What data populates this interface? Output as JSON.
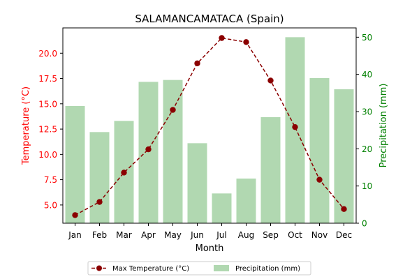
{
  "chart_data": {
    "type": "bar",
    "title": "SALAMANCAMATACA (Spain)",
    "xlabel": "Month",
    "categories": [
      "Jan",
      "Feb",
      "Mar",
      "Apr",
      "May",
      "Jun",
      "Jul",
      "Aug",
      "Sep",
      "Oct",
      "Nov",
      "Dec"
    ],
    "series": [
      {
        "name": "Max Temperature (°C)",
        "type": "line",
        "axis": "left",
        "color": "#8b0000",
        "values": [
          4.0,
          5.3,
          8.2,
          10.5,
          14.4,
          19.0,
          21.5,
          21.1,
          17.3,
          12.7,
          7.5,
          4.6
        ]
      },
      {
        "name": "Precipitation (mm)",
        "type": "bar",
        "axis": "right",
        "color": "#b1d8b1",
        "values": [
          31.5,
          24.5,
          27.5,
          38.0,
          38.5,
          21.5,
          8.0,
          12.0,
          28.5,
          50.0,
          39.0,
          36.0
        ]
      }
    ],
    "y_left": {
      "label": "Temperature (°C)",
      "color": "#ff0000",
      "range": [
        3.2,
        22.5
      ],
      "ticks": [
        "5.0",
        "7.5",
        "10.0",
        "12.5",
        "15.0",
        "17.5",
        "20.0"
      ]
    },
    "y_right": {
      "label": "Precipitation (mm)",
      "color": "#008000",
      "range": [
        0,
        52.5
      ],
      "ticks": [
        "0",
        "10",
        "20",
        "30",
        "40",
        "50"
      ]
    },
    "legend": {
      "position": "bottom-center",
      "entries": [
        "Max Temperature (°C)",
        "Precipitation (mm)"
      ]
    },
    "grid": false
  }
}
